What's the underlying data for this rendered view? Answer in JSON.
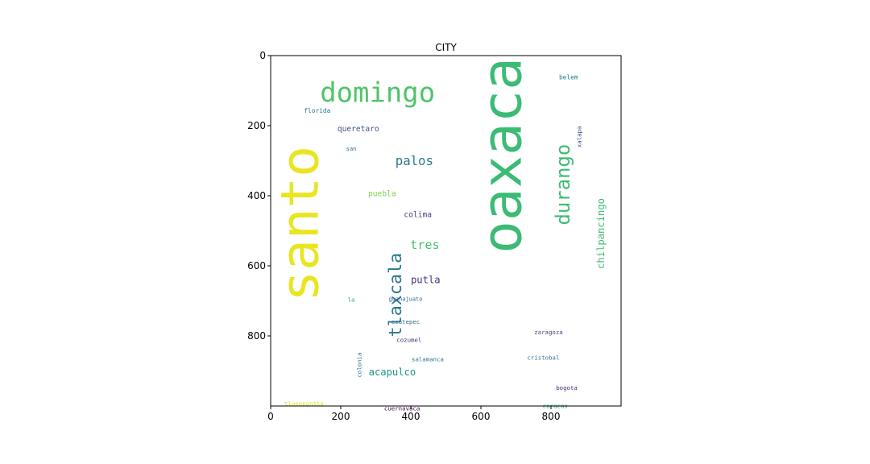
{
  "chart_data": {
    "type": "wordcloud",
    "title": "CITY",
    "xlim": [
      0,
      1000
    ],
    "ylim": [
      1000,
      0
    ],
    "x_ticks": [
      0,
      200,
      400,
      600,
      800
    ],
    "y_ticks": [
      0,
      200,
      400,
      600,
      800
    ],
    "grid": false,
    "background": "#ffffff",
    "words": [
      {
        "text": "santo",
        "x": 85,
        "y": 480,
        "size": 148,
        "color": "#e9e520",
        "orientation": "vertical"
      },
      {
        "text": "oaxaca",
        "x": 660,
        "y": 285,
        "size": 155,
        "color": "#3cbb75",
        "orientation": "vertical"
      },
      {
        "text": "domingo",
        "x": 305,
        "y": 108,
        "size": 78,
        "color": "#4fc468",
        "orientation": "horizontal"
      },
      {
        "text": "durango",
        "x": 835,
        "y": 368,
        "size": 55,
        "color": "#3ebc74",
        "orientation": "vertical"
      },
      {
        "text": "tlaxcala",
        "x": 357,
        "y": 683,
        "size": 50,
        "color": "#2a788e",
        "orientation": "vertical"
      },
      {
        "text": "palos",
        "x": 410,
        "y": 300,
        "size": 36,
        "color": "#2a788e",
        "orientation": "horizontal"
      },
      {
        "text": "tres",
        "x": 440,
        "y": 540,
        "size": 35,
        "color": "#47c16e",
        "orientation": "horizontal"
      },
      {
        "text": "chilpancingo",
        "x": 943,
        "y": 508,
        "size": 28,
        "color": "#3fbc73",
        "orientation": "vertical"
      },
      {
        "text": "putla",
        "x": 442,
        "y": 640,
        "size": 28,
        "color": "#46327e",
        "orientation": "horizontal"
      },
      {
        "text": "acapulco",
        "x": 347,
        "y": 904,
        "size": 28,
        "color": "#21918c",
        "orientation": "horizontal"
      },
      {
        "text": "queretaro",
        "x": 250,
        "y": 210,
        "size": 22,
        "color": "#3b528b",
        "orientation": "horizontal"
      },
      {
        "text": "puebla",
        "x": 318,
        "y": 395,
        "size": 22,
        "color": "#7ad151",
        "orientation": "horizontal"
      },
      {
        "text": "colima",
        "x": 420,
        "y": 455,
        "size": 22,
        "color": "#433e85",
        "orientation": "horizontal"
      },
      {
        "text": "florida",
        "x": 133,
        "y": 158,
        "size": 18,
        "color": "#2c728e",
        "orientation": "horizontal"
      },
      {
        "text": "belem",
        "x": 850,
        "y": 62,
        "size": 18,
        "color": "#287c8e",
        "orientation": "horizontal"
      },
      {
        "text": "xalapa",
        "x": 880,
        "y": 232,
        "size": 17,
        "color": "#3e4a89",
        "orientation": "vertical"
      },
      {
        "text": "san",
        "x": 230,
        "y": 267,
        "size": 16,
        "color": "#31688e",
        "orientation": "horizontal"
      },
      {
        "text": "la",
        "x": 230,
        "y": 696,
        "size": 17,
        "color": "#22a884",
        "orientation": "horizontal"
      },
      {
        "text": "guanajuato",
        "x": 385,
        "y": 695,
        "size": 16,
        "color": "#355f8d",
        "orientation": "horizontal"
      },
      {
        "text": "colonia",
        "x": 253,
        "y": 883,
        "size": 17,
        "color": "#2a788e",
        "orientation": "vertical"
      },
      {
        "text": "ecatepec",
        "x": 385,
        "y": 760,
        "size": 17,
        "color": "#2f6c8e",
        "orientation": "horizontal"
      },
      {
        "text": "cozumel",
        "x": 395,
        "y": 812,
        "size": 17,
        "color": "#472d7b",
        "orientation": "horizontal"
      },
      {
        "text": "zaragoza",
        "x": 793,
        "y": 790,
        "size": 17,
        "color": "#414487",
        "orientation": "horizontal"
      },
      {
        "text": "salamanca",
        "x": 448,
        "y": 867,
        "size": 17,
        "color": "#2c728e",
        "orientation": "horizontal"
      },
      {
        "text": "cristobal",
        "x": 778,
        "y": 862,
        "size": 17,
        "color": "#2c728e",
        "orientation": "horizontal"
      },
      {
        "text": "bogota",
        "x": 845,
        "y": 948,
        "size": 17,
        "color": "#482878",
        "orientation": "horizontal"
      },
      {
        "text": "tlanepantla",
        "x": 95,
        "y": 993,
        "size": 17,
        "color": "#dde318",
        "orientation": "horizontal"
      },
      {
        "text": "cuernavaca",
        "x": 375,
        "y": 1007,
        "size": 17,
        "color": "#440154",
        "orientation": "horizontal"
      },
      {
        "text": "caracas",
        "x": 812,
        "y": 1000,
        "size": 17,
        "color": "#20a486",
        "orientation": "horizontal"
      }
    ]
  }
}
